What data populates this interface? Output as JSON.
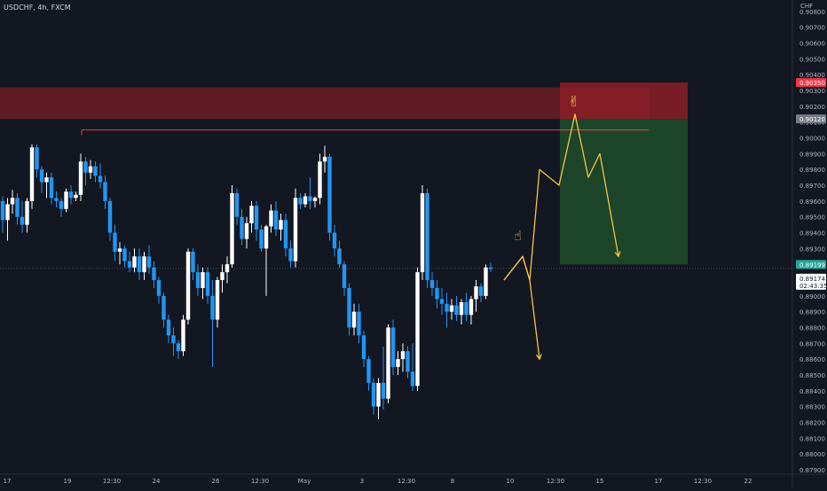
{
  "header": {
    "symbol_title": "USDCHF, 4h, FXCM",
    "currency": "CHF"
  },
  "colors": {
    "background": "#131722",
    "bull": "#ffffff",
    "bear": "#2196f3",
    "resistance_zone": "#7a1e25",
    "stop_zone": "#8b1f27",
    "target_zone": "#1e4d2b",
    "resistance_line": "#e0463c",
    "projection": "#f5c542",
    "axis_text": "#b2b5be"
  },
  "chart_data": {
    "type": "candlestick",
    "symbol": "USDCHF",
    "timeframe": "4h",
    "source": "FXCM",
    "y_range": [
      0.879,
      0.9085
    ],
    "x_ticks": [
      "17",
      "19",
      "12:30",
      "24",
      "26",
      "12:30",
      "May",
      "3",
      "12:30",
      "8",
      "10",
      "12:30",
      "15",
      "17",
      "12:30",
      "22"
    ],
    "y_ticks": [
      "0.90800",
      "0.90700",
      "0.90600",
      "0.90500",
      "0.90400",
      "0.90300",
      "0.90200",
      "0.90100",
      "0.90000",
      "0.89900",
      "0.89800",
      "0.89700",
      "0.89600",
      "0.89500",
      "0.89400",
      "0.89300",
      "0.89100",
      "0.89000",
      "0.88900",
      "0.88800",
      "0.88700",
      "0.88600",
      "0.88500",
      "0.88400",
      "0.88300",
      "0.88200",
      "0.88100",
      "0.88000",
      "0.87900"
    ],
    "price_labels": {
      "stop": "0.90350",
      "entry": "0.90120",
      "target": "0.89199",
      "last": "0.89174",
      "countdown": "02:43:35"
    },
    "resistance_line_price": 0.9005,
    "zones": [
      {
        "name": "resistance",
        "top": 0.9032,
        "bottom": 0.9012
      },
      {
        "name": "stop",
        "top": 0.9035,
        "bottom": 0.9012
      },
      {
        "name": "target",
        "top": 0.9012,
        "bottom": 0.89199
      }
    ],
    "candles": [
      [
        0.896,
        0.8963,
        0.894,
        0.8948
      ],
      [
        0.8948,
        0.8962,
        0.8935,
        0.8958
      ],
      [
        0.8958,
        0.8967,
        0.8952,
        0.8962
      ],
      [
        0.8962,
        0.8965,
        0.8945,
        0.895
      ],
      [
        0.895,
        0.896,
        0.894,
        0.8945
      ],
      [
        0.8945,
        0.8962,
        0.894,
        0.896
      ],
      [
        0.896,
        0.8996,
        0.8955,
        0.8994
      ],
      [
        0.8994,
        0.8996,
        0.8975,
        0.898
      ],
      [
        0.898,
        0.8982,
        0.8965,
        0.8972
      ],
      [
        0.8972,
        0.8978,
        0.8962,
        0.8975
      ],
      [
        0.8975,
        0.8978,
        0.8958,
        0.8962
      ],
      [
        0.8962,
        0.8966,
        0.8956,
        0.896
      ],
      [
        0.896,
        0.8962,
        0.895,
        0.8955
      ],
      [
        0.8955,
        0.8968,
        0.8953,
        0.8966
      ],
      [
        0.8966,
        0.897,
        0.8958,
        0.8962
      ],
      [
        0.8962,
        0.8966,
        0.896,
        0.8964
      ],
      [
        0.8964,
        0.899,
        0.896,
        0.8985
      ],
      [
        0.8985,
        0.8988,
        0.897,
        0.8978
      ],
      [
        0.8978,
        0.8986,
        0.8974,
        0.8982
      ],
      [
        0.8982,
        0.8985,
        0.8972,
        0.8976
      ],
      [
        0.8976,
        0.8984,
        0.8968,
        0.8972
      ],
      [
        0.8972,
        0.8976,
        0.8955,
        0.896
      ],
      [
        0.896,
        0.8962,
        0.8935,
        0.894
      ],
      [
        0.894,
        0.8945,
        0.8922,
        0.8928
      ],
      [
        0.8928,
        0.8934,
        0.892,
        0.893
      ],
      [
        0.893,
        0.8932,
        0.8918,
        0.8922
      ],
      [
        0.8922,
        0.8928,
        0.8915,
        0.8918
      ],
      [
        0.8918,
        0.893,
        0.8915,
        0.8925
      ],
      [
        0.8925,
        0.893,
        0.891,
        0.8915
      ],
      [
        0.8915,
        0.8928,
        0.891,
        0.8925
      ],
      [
        0.8925,
        0.8932,
        0.8914,
        0.8918
      ],
      [
        0.8918,
        0.8922,
        0.8905,
        0.891
      ],
      [
        0.891,
        0.8912,
        0.8895,
        0.89
      ],
      [
        0.89,
        0.8902,
        0.888,
        0.8885
      ],
      [
        0.8885,
        0.8888,
        0.887,
        0.8875
      ],
      [
        0.8875,
        0.888,
        0.8862,
        0.887
      ],
      [
        0.887,
        0.8872,
        0.886,
        0.8865
      ],
      [
        0.8865,
        0.8888,
        0.8862,
        0.8885
      ],
      [
        0.8885,
        0.893,
        0.8882,
        0.8928
      ],
      [
        0.8928,
        0.893,
        0.891,
        0.8915
      ],
      [
        0.8915,
        0.892,
        0.89,
        0.8905
      ],
      [
        0.8905,
        0.8918,
        0.8898,
        0.8915
      ],
      [
        0.8915,
        0.8918,
        0.8895,
        0.89
      ],
      [
        0.89,
        0.891,
        0.8855,
        0.8885
      ],
      [
        0.8885,
        0.8912,
        0.888,
        0.891
      ],
      [
        0.891,
        0.892,
        0.8902,
        0.8915
      ],
      [
        0.8915,
        0.8925,
        0.8908,
        0.892
      ],
      [
        0.892,
        0.897,
        0.8918,
        0.8965
      ],
      [
        0.8965,
        0.8968,
        0.8945,
        0.895
      ],
      [
        0.895,
        0.8955,
        0.8932,
        0.8936
      ],
      [
        0.8936,
        0.895,
        0.893,
        0.8946
      ],
      [
        0.8946,
        0.896,
        0.894,
        0.8957
      ],
      [
        0.8957,
        0.896,
        0.8935,
        0.8942
      ],
      [
        0.8942,
        0.8945,
        0.8928,
        0.893
      ],
      [
        0.893,
        0.8945,
        0.89,
        0.8944
      ],
      [
        0.8944,
        0.8958,
        0.894,
        0.8954
      ],
      [
        0.8954,
        0.896,
        0.8938,
        0.8942
      ],
      [
        0.8942,
        0.8952,
        0.8935,
        0.8948
      ],
      [
        0.8948,
        0.8952,
        0.8925,
        0.893
      ],
      [
        0.893,
        0.8935,
        0.8918,
        0.8922
      ],
      [
        0.8922,
        0.8968,
        0.8918,
        0.8962
      ],
      [
        0.8962,
        0.8965,
        0.8955,
        0.8958
      ],
      [
        0.8958,
        0.8965,
        0.8956,
        0.8963
      ],
      [
        0.8963,
        0.8975,
        0.8955,
        0.896
      ],
      [
        0.896,
        0.8963,
        0.8956,
        0.8962
      ],
      [
        0.8962,
        0.899,
        0.8958,
        0.8985
      ],
      [
        0.8985,
        0.8995,
        0.8978,
        0.8988
      ],
      [
        0.8988,
        0.899,
        0.8935,
        0.894
      ],
      [
        0.894,
        0.8945,
        0.8925,
        0.893
      ],
      [
        0.893,
        0.8935,
        0.8918,
        0.892
      ],
      [
        0.892,
        0.8922,
        0.89,
        0.8905
      ],
      [
        0.8905,
        0.8908,
        0.8875,
        0.888
      ],
      [
        0.888,
        0.8895,
        0.8875,
        0.889
      ],
      [
        0.889,
        0.8895,
        0.887,
        0.8875
      ],
      [
        0.8875,
        0.8878,
        0.8855,
        0.886
      ],
      [
        0.886,
        0.8862,
        0.884,
        0.8845
      ],
      [
        0.8845,
        0.8848,
        0.8825,
        0.883
      ],
      [
        0.883,
        0.8848,
        0.8822,
        0.8845
      ],
      [
        0.8845,
        0.8868,
        0.8828,
        0.8835
      ],
      [
        0.8835,
        0.8882,
        0.8832,
        0.888
      ],
      [
        0.888,
        0.8885,
        0.885,
        0.8855
      ],
      [
        0.8855,
        0.8865,
        0.885,
        0.886
      ],
      [
        0.886,
        0.887,
        0.8852,
        0.8865
      ],
      [
        0.8865,
        0.8868,
        0.8848,
        0.8852
      ],
      [
        0.8852,
        0.887,
        0.884,
        0.8843
      ],
      [
        0.8843,
        0.8918,
        0.884,
        0.8915
      ],
      [
        0.8915,
        0.897,
        0.891,
        0.8965
      ],
      [
        0.8965,
        0.8968,
        0.8905,
        0.891
      ],
      [
        0.891,
        0.8915,
        0.89,
        0.8905
      ],
      [
        0.8905,
        0.891,
        0.8892,
        0.8898
      ],
      [
        0.8898,
        0.8905,
        0.8888,
        0.8895
      ],
      [
        0.8895,
        0.8902,
        0.888,
        0.889
      ],
      [
        0.889,
        0.8898,
        0.8885,
        0.8894
      ],
      [
        0.8894,
        0.89,
        0.8884,
        0.8888
      ],
      [
        0.8888,
        0.8898,
        0.8882,
        0.8896
      ],
      [
        0.8896,
        0.8902,
        0.8884,
        0.8888
      ],
      [
        0.8888,
        0.89,
        0.8882,
        0.8898
      ],
      [
        0.8898,
        0.891,
        0.889,
        0.8906
      ],
      [
        0.8906,
        0.8908,
        0.8896,
        0.89
      ],
      [
        0.89,
        0.892,
        0.8898,
        0.8918
      ],
      [
        0.8918,
        0.8921,
        0.8915,
        0.8917
      ]
    ],
    "projection_paths": [
      [
        [
          "4",
          0.891
        ],
        [
          "5",
          0.8925
        ],
        [
          "6",
          0.891
        ],
        [
          "8",
          0.886
        ]
      ],
      [
        [
          "4",
          0.891
        ],
        [
          "5",
          0.8925
        ],
        [
          "6",
          0.891
        ],
        [
          "8",
          0.898
        ],
        [
          "9",
          0.897
        ],
        [
          "11",
          0.9015
        ],
        [
          "12",
          0.8975
        ],
        [
          "13",
          0.899
        ],
        [
          "15",
          0.8925
        ]
      ]
    ]
  }
}
